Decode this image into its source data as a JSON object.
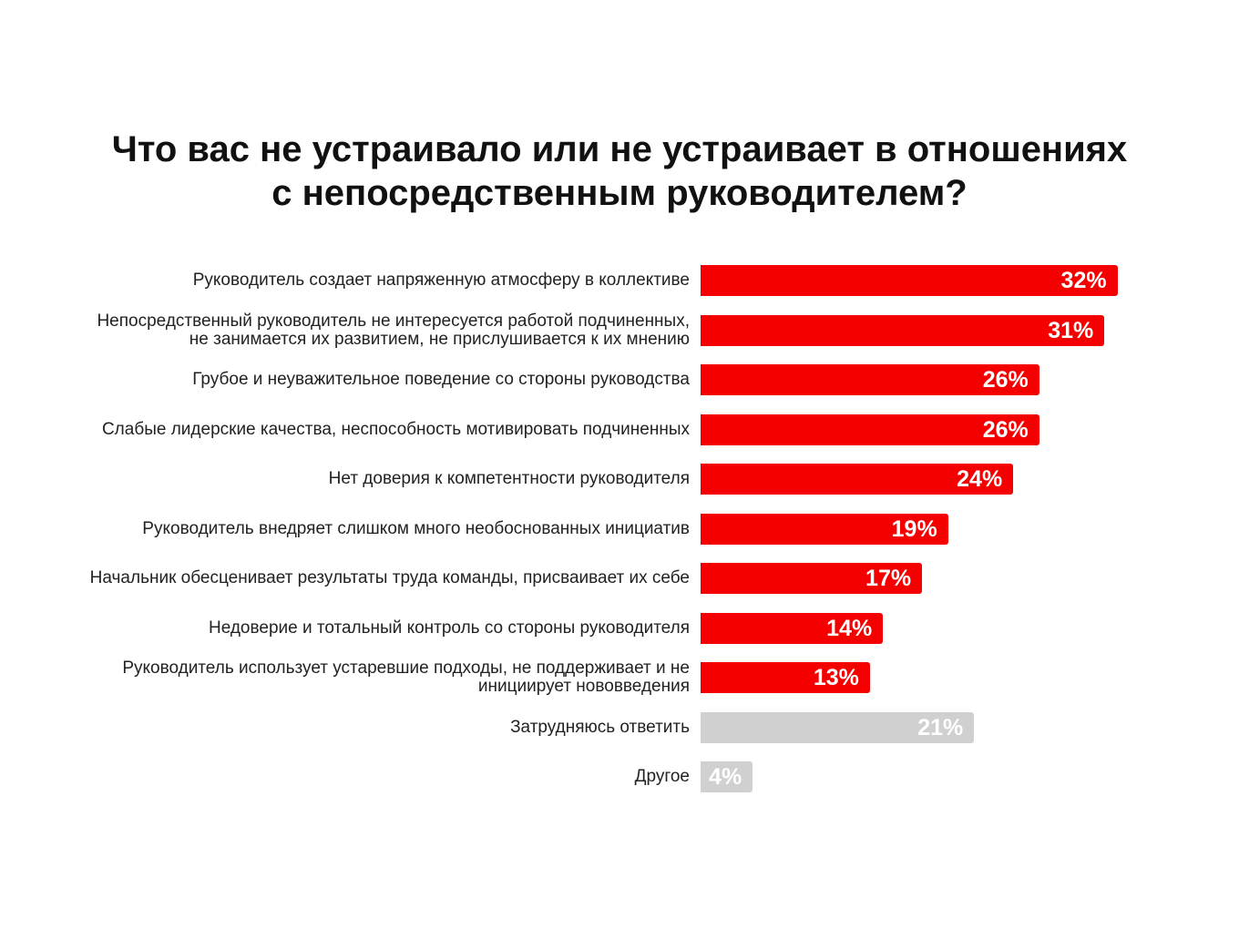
{
  "chart_data": {
    "type": "bar",
    "orientation": "horizontal",
    "title": "Что вас не устраивало или не устраивает в отношениях\nс непосредственным руководителем?",
    "categories": [
      "Руководитель создает напряженную атмосферу в коллективе",
      "Непосредственный руководитель не интересуется работой подчиненных,\nне занимается их развитием, не прислушивается к их мнению",
      "Грубое и неуважительное поведение со стороны руководства",
      "Слабые лидерские качества, неспособность мотивировать подчиненных",
      "Нет доверия к компетентности руководителя",
      "Руководитель внедряет слишком много необоснованных инициатив",
      "Начальник обесценивает результаты труда команды, присваивает их себе",
      "Недоверие и тотальный контроль со стороны руководителя",
      "Руководитель использует устаревшие подходы, не поддерживает и не\nинициирует нововведения",
      "Затрудняюсь ответить",
      "Другое"
    ],
    "values": [
      32,
      31,
      26,
      26,
      24,
      19,
      17,
      14,
      13,
      21,
      4
    ],
    "value_labels": [
      "32%",
      "31%",
      "26%",
      "26%",
      "24%",
      "19%",
      "17%",
      "14%",
      "13%",
      "21%",
      "4%"
    ],
    "colors": [
      "#f50000",
      "#f50000",
      "#f50000",
      "#f50000",
      "#f50000",
      "#f50000",
      "#f50000",
      "#f50000",
      "#f50000",
      "#d0d0d0",
      "#d0d0d0"
    ]
  }
}
